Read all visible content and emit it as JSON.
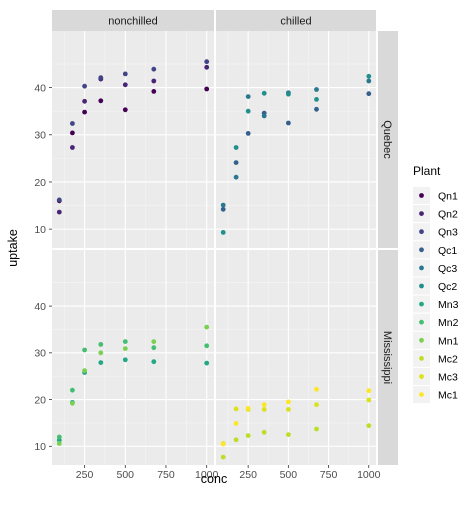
{
  "chart_data": {
    "type": "scatter",
    "xlabel": "conc",
    "ylabel": "uptake",
    "xlim": [
      50,
      1045
    ],
    "ylim": [
      6,
      52
    ],
    "x_ticks": [
      250,
      500,
      750,
      1000
    ],
    "y_ticks": [
      10,
      20,
      30,
      40
    ],
    "col_facets": [
      "nonchilled",
      "chilled"
    ],
    "row_facets": [
      "Quebec",
      "Mississippi"
    ],
    "legend": {
      "title": "Plant",
      "position": "right",
      "items": [
        {
          "name": "Qn1",
          "color": "#440154"
        },
        {
          "name": "Qn2",
          "color": "#482576"
        },
        {
          "name": "Qn3",
          "color": "#414487"
        },
        {
          "name": "Qc1",
          "color": "#35608d"
        },
        {
          "name": "Qc3",
          "color": "#2a788e"
        },
        {
          "name": "Qc2",
          "color": "#21908c"
        },
        {
          "name": "Mn3",
          "color": "#22a884"
        },
        {
          "name": "Mn2",
          "color": "#43bf71"
        },
        {
          "name": "Mn1",
          "color": "#7ad151"
        },
        {
          "name": "Mc2",
          "color": "#bbdf27"
        },
        {
          "name": "Mc3",
          "color": "#d9e21b"
        },
        {
          "name": "Mc1",
          "color": "#fde725"
        }
      ]
    },
    "x": [
      95,
      175,
      250,
      350,
      500,
      675,
      1000
    ],
    "series": [
      {
        "name": "Qn1",
        "col": "nonchilled",
        "row": "Quebec",
        "values": [
          16.0,
          30.4,
          34.8,
          37.2,
          35.3,
          39.2,
          39.7
        ]
      },
      {
        "name": "Qn2",
        "col": "nonchilled",
        "row": "Quebec",
        "values": [
          13.6,
          27.3,
          37.1,
          41.8,
          40.6,
          41.4,
          44.3
        ]
      },
      {
        "name": "Qn3",
        "col": "nonchilled",
        "row": "Quebec",
        "values": [
          16.2,
          32.4,
          40.3,
          42.1,
          42.9,
          43.9,
          45.5
        ]
      },
      {
        "name": "Qc1",
        "col": "chilled",
        "row": "Quebec",
        "values": [
          14.2,
          24.1,
          30.3,
          34.6,
          32.5,
          35.4,
          38.7
        ]
      },
      {
        "name": "Qc3",
        "col": "chilled",
        "row": "Quebec",
        "values": [
          15.1,
          21.0,
          38.1,
          34.0,
          38.9,
          39.6,
          41.4
        ]
      },
      {
        "name": "Qc2",
        "col": "chilled",
        "row": "Quebec",
        "values": [
          9.3,
          27.3,
          35.0,
          38.8,
          38.6,
          37.5,
          42.4
        ]
      },
      {
        "name": "Mn3",
        "col": "nonchilled",
        "row": "Mississippi",
        "values": [
          11.3,
          19.4,
          25.8,
          27.9,
          28.5,
          28.1,
          27.8
        ]
      },
      {
        "name": "Mn2",
        "col": "nonchilled",
        "row": "Mississippi",
        "values": [
          12.0,
          22.0,
          30.6,
          31.8,
          32.4,
          31.1,
          31.5
        ]
      },
      {
        "name": "Mn1",
        "col": "nonchilled",
        "row": "Mississippi",
        "values": [
          10.6,
          19.2,
          26.2,
          30.0,
          30.9,
          32.4,
          35.5
        ]
      },
      {
        "name": "Mc2",
        "col": "chilled",
        "row": "Mississippi",
        "values": [
          7.7,
          11.4,
          12.3,
          13.0,
          12.5,
          13.7,
          14.4
        ]
      },
      {
        "name": "Mc3",
        "col": "chilled",
        "row": "Mississippi",
        "values": [
          10.6,
          18.0,
          17.9,
          17.9,
          17.9,
          18.9,
          19.9
        ]
      },
      {
        "name": "Mc1",
        "col": "chilled",
        "row": "Mississippi",
        "values": [
          10.5,
          14.9,
          18.1,
          18.9,
          19.5,
          22.2,
          21.9
        ]
      }
    ]
  }
}
